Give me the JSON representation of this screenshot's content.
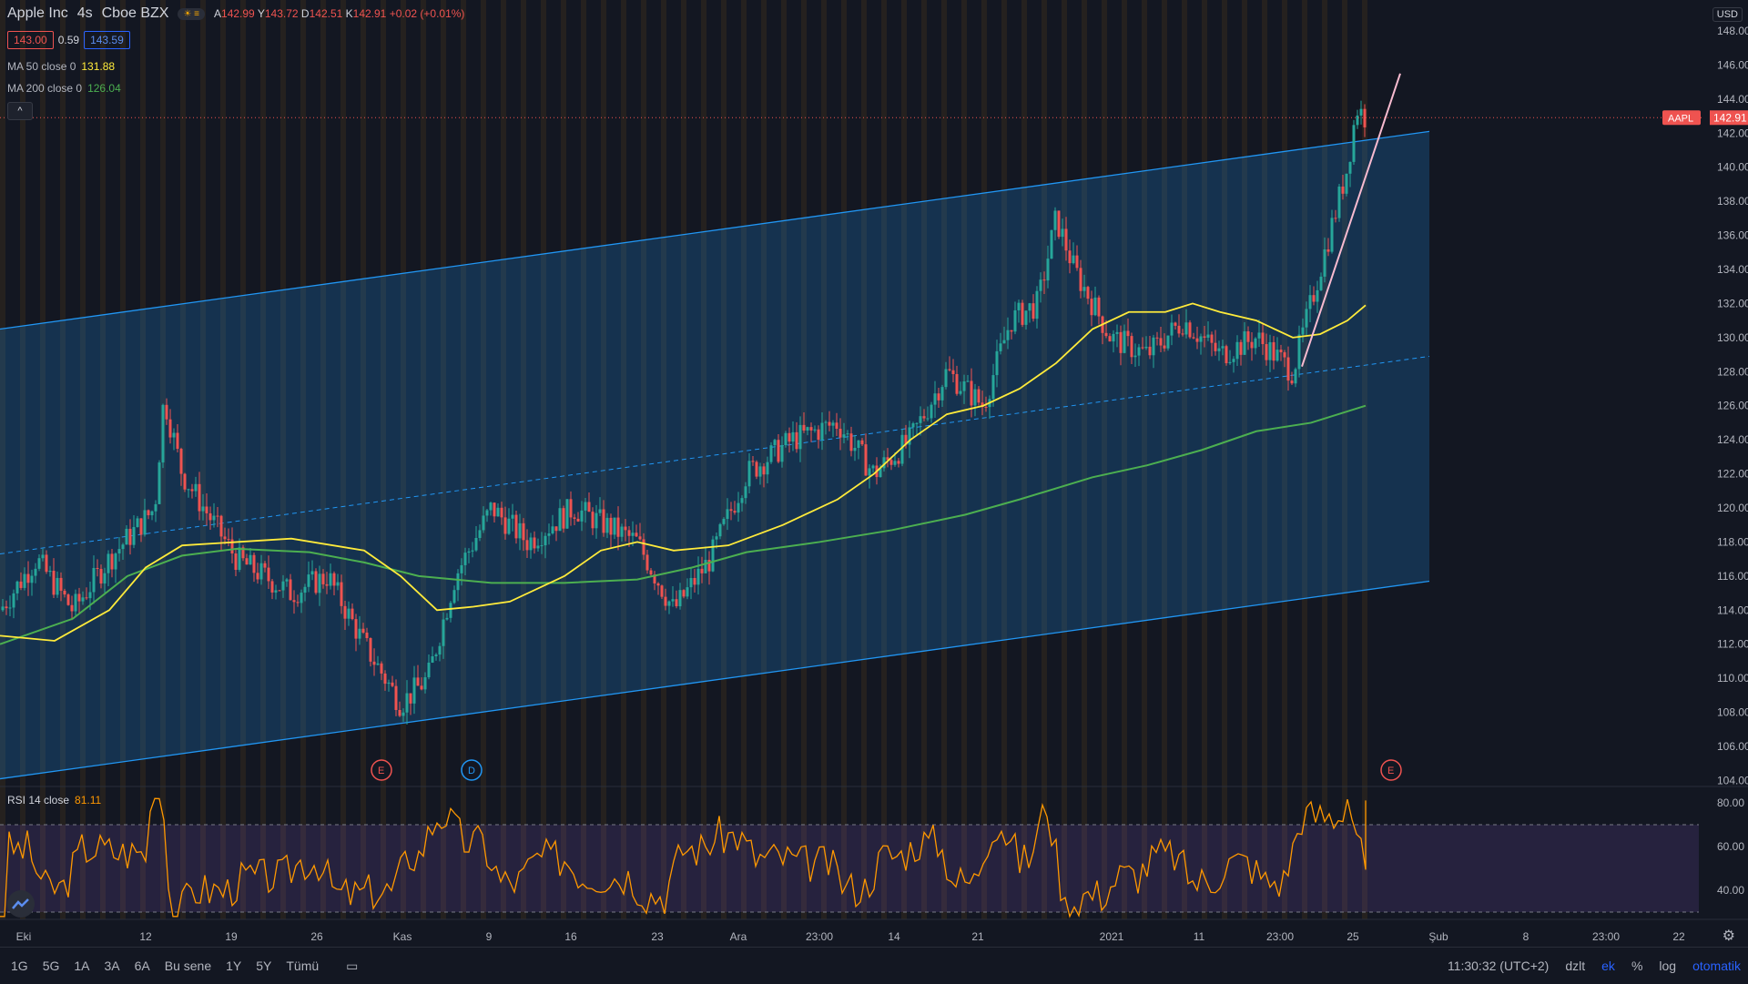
{
  "header": {
    "symbol": "Apple Inc",
    "interval": "4s",
    "exchange": "Cboe BZX",
    "ohlc": [
      {
        "k": "A",
        "v": "142.99"
      },
      {
        "k": "Y",
        "v": "143.72"
      },
      {
        "k": "D",
        "v": "142.51"
      },
      {
        "k": "K",
        "v": "142.91"
      }
    ],
    "change": "+0.02 (+0.01%)"
  },
  "trade": {
    "sell": "143.00",
    "spread": "0.59",
    "buy": "143.59"
  },
  "indicators": [
    {
      "label": "MA 50 close 0",
      "value": "131.88",
      "color": "#ffeb3b"
    },
    {
      "label": "MA 200 close 0",
      "value": "126.04",
      "color": "#4caf50"
    }
  ],
  "rsi": {
    "label": "RSI 14 close",
    "value": "81.11"
  },
  "currency": "USD",
  "price_axis": [
    "148.00",
    "146.00",
    "144.00",
    "142.00",
    "140.00",
    "138.00",
    "136.00",
    "134.00",
    "132.00",
    "130.00",
    "128.00",
    "126.00",
    "124.00",
    "122.00",
    "120.00",
    "118.00",
    "116.00",
    "114.00",
    "112.00",
    "110.00",
    "108.00",
    "106.00",
    "104.00"
  ],
  "rsi_axis": [
    "80.00",
    "60.00",
    "40.00"
  ],
  "last_price": {
    "ticker": "AAPL",
    "value": "142.91"
  },
  "time_axis": [
    "Eki",
    "12",
    "19",
    "26",
    "Kas",
    "9",
    "16",
    "23",
    "Ara",
    "23:00",
    "14",
    "21",
    "2021",
    "11",
    "23:00",
    "25",
    "Şub",
    "8",
    "23:00",
    "22"
  ],
  "events": [
    "E",
    "D",
    "E"
  ],
  "range_buttons": [
    "1G",
    "5G",
    "1A",
    "3A",
    "6A",
    "Bu sene",
    "1Y",
    "5Y",
    "Tümü"
  ],
  "footer": {
    "clock": "11:30:32 (UTC+2)",
    "modes": [
      "dzlt",
      "ek",
      "%",
      "log",
      "otomatik"
    ]
  },
  "chart_data": {
    "type": "candlestick",
    "y_range": [
      103,
      149
    ],
    "rsi_levels": [
      70,
      30
    ],
    "last_close": 142.91,
    "ma50_last": 131.88,
    "ma200_last": 126.04,
    "rsi_last": 81.11
  }
}
